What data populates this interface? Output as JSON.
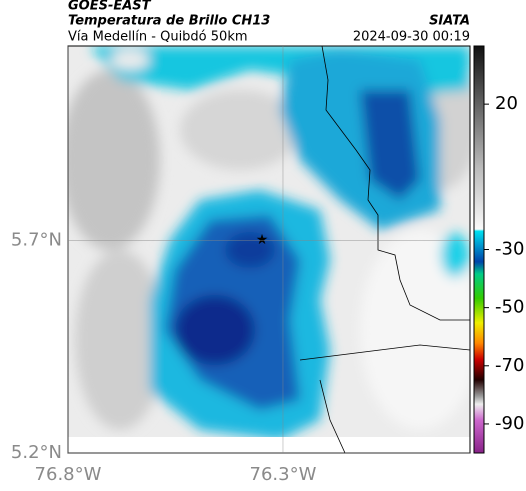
{
  "header": {
    "title": "GOES-EAST",
    "subtitle": "Temperatura de Brillo CH13",
    "source": "SIATA",
    "region": "Vía Medellín - Quibdó 50km",
    "datetime": "2024-09-30 00:19"
  },
  "map": {
    "xlim": [
      -76.8,
      -75.865
    ],
    "ylim": [
      5.2,
      6.158
    ],
    "xticks": [
      {
        "value": -76.8,
        "label": "76.8°W"
      },
      {
        "value": -76.3,
        "label": "76.3°W"
      }
    ],
    "yticks": [
      {
        "value": 5.2,
        "label": "5.2°N"
      },
      {
        "value": 5.7,
        "label": "5.7°N"
      }
    ],
    "grid": true
  },
  "colorbar": {
    "lim": [
      -100,
      40
    ],
    "ticks": [
      20,
      -30,
      -50,
      -70,
      -90
    ]
  }
}
